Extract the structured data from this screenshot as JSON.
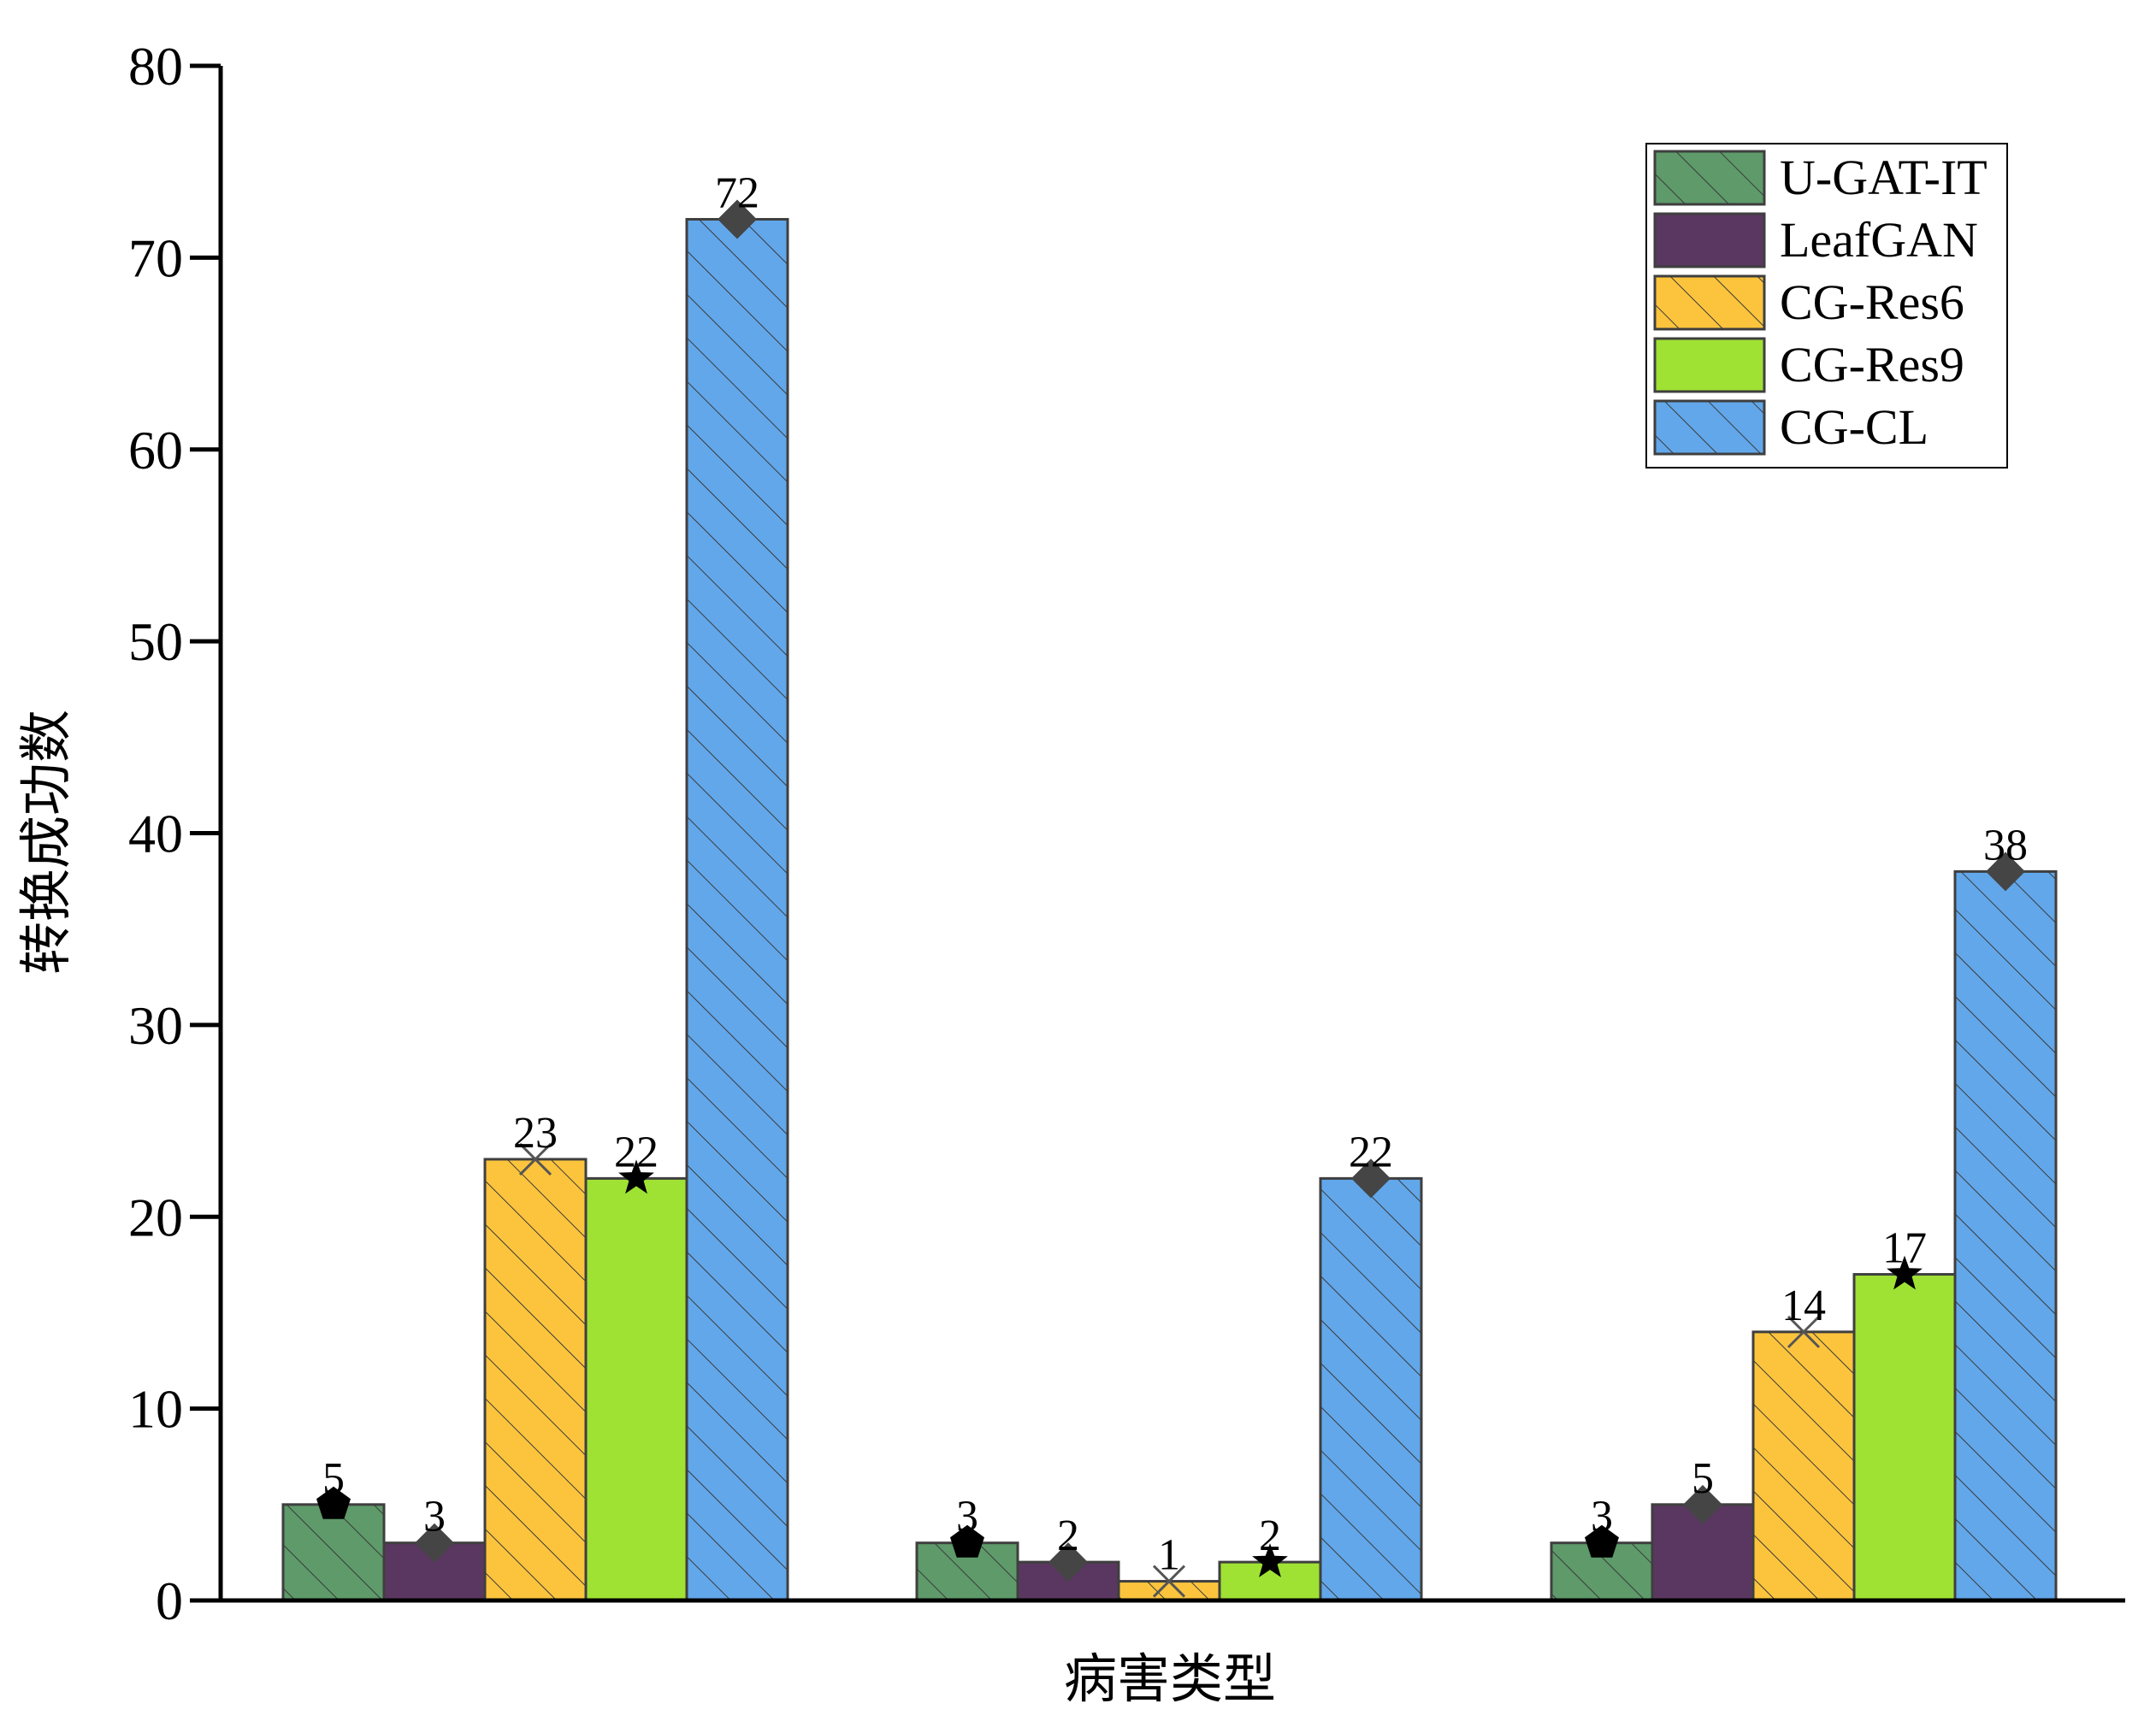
{
  "chart_data": {
    "type": "bar",
    "title": "",
    "xlabel": "病害类型",
    "ylabel": "转换成功数",
    "ylim": [
      0,
      80
    ],
    "yticks": [
      0,
      10,
      20,
      30,
      40,
      50,
      60,
      70,
      80
    ],
    "categories": [
      "",
      "",
      ""
    ],
    "grid": false,
    "legend_position": "top-right",
    "series": [
      {
        "name": "U-GAT-IT",
        "values": [
          5,
          3,
          3
        ],
        "color": "#5e9a6a",
        "hatch": true,
        "marker": "pentagon"
      },
      {
        "name": "LeafGAN",
        "values": [
          3,
          2,
          5
        ],
        "color": "#5a3760",
        "hatch": false,
        "marker": "diamond"
      },
      {
        "name": "CG-Res6",
        "values": [
          23,
          1,
          14
        ],
        "color": "#fcc43d",
        "hatch": true,
        "marker": "x"
      },
      {
        "name": "CG-Res9",
        "values": [
          22,
          2,
          17
        ],
        "color": "#9fe233",
        "hatch": false,
        "marker": "star"
      },
      {
        "name": "CG-CL",
        "values": [
          72,
          22,
          38
        ],
        "color": "#62a7ea",
        "hatch": true,
        "marker": "diamond"
      }
    ]
  }
}
